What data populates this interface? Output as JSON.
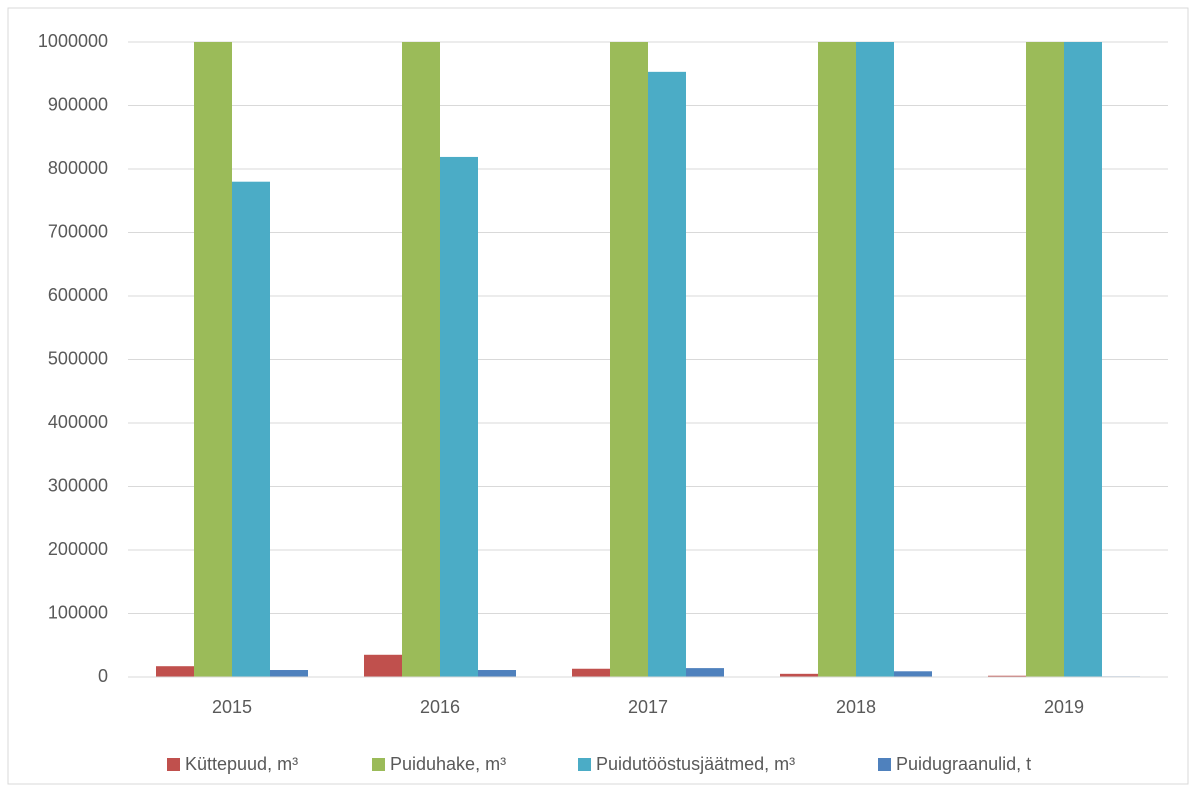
{
  "chart_data": {
    "type": "bar",
    "categories": [
      "2015",
      "2016",
      "2017",
      "2018",
      "2019"
    ],
    "series": [
      {
        "name": "Küttepuud, m³",
        "color": "#c0504d",
        "values": [
          17000,
          35000,
          13000,
          5000,
          2000
        ]
      },
      {
        "name": "Puiduhake, m³",
        "color": "#9bbb59",
        "values": [
          1000000,
          1000000,
          1000000,
          1000000,
          1000000
        ]
      },
      {
        "name": "Puidutööstusjäätmed, m³",
        "color": "#4bacc6",
        "values": [
          780000,
          819000,
          953000,
          1000000,
          1000000
        ]
      },
      {
        "name": "Puidugraanulid, t",
        "color": "#4f81bd",
        "values": [
          11000,
          11000,
          14000,
          9000,
          1000
        ]
      }
    ],
    "ylim": [
      0,
      1000000
    ],
    "yticks": [
      0,
      100000,
      200000,
      300000,
      400000,
      500000,
      600000,
      700000,
      800000,
      900000,
      1000000
    ],
    "grid": true,
    "legend": "bottom"
  }
}
